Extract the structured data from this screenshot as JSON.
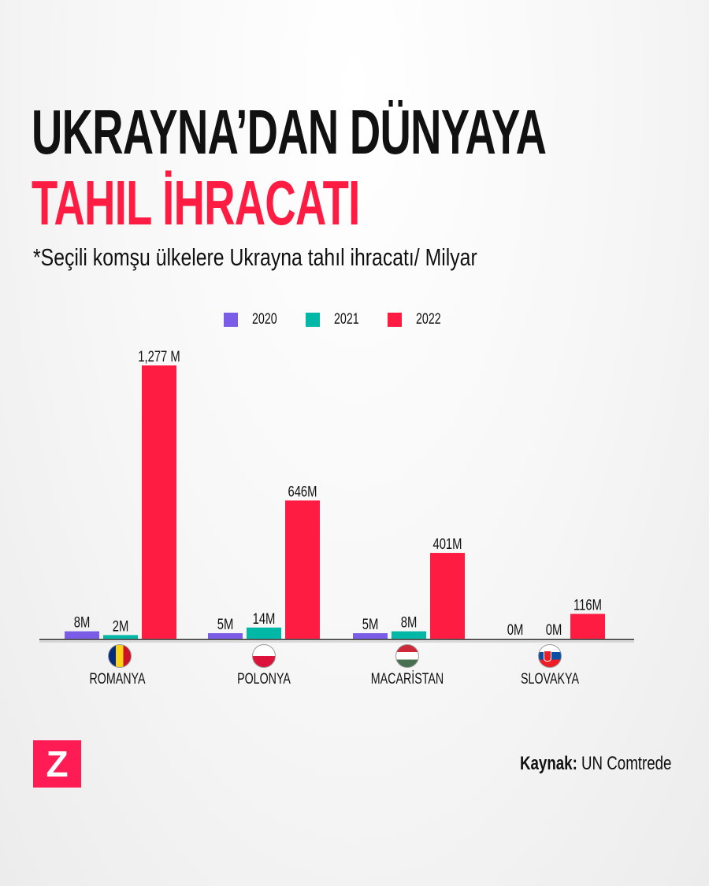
{
  "title_line1": "UKRAYNA’DAN DÜNYAYA",
  "title_line2": "TAHIL İHRACATI",
  "subtitle": "*Seçili komşu ülkelere Ukrayna tahıl ihracatı/ Milyar",
  "logo": "Z",
  "source_label": "Kaynak:",
  "source_value": "UN Comtrede",
  "chart_data": {
    "type": "bar",
    "categories": [
      "ROMANYA",
      "POLONYA",
      "MACARİSTAN",
      "SLOVAKYA"
    ],
    "series": [
      {
        "name": "2020",
        "color": "#7b5ce6",
        "values": [
          8,
          5,
          5,
          0
        ],
        "labels": [
          "8M",
          "5M",
          "5M",
          "0M"
        ]
      },
      {
        "name": "2021",
        "color": "#00b8a5",
        "values": [
          2,
          14,
          8,
          0
        ],
        "labels": [
          "2M",
          "14M",
          "8M",
          "0M"
        ]
      },
      {
        "name": "2022",
        "color": "#ff1c42",
        "values": [
          1277,
          646,
          401,
          116
        ],
        "labels": [
          "1,277 M",
          "646M",
          "401M",
          "116M"
        ]
      }
    ],
    "legend": "top-center",
    "grid": false,
    "flags": [
      "romania-flag",
      "poland-flag",
      "hungary-flag",
      "slovakia-flag"
    ]
  }
}
